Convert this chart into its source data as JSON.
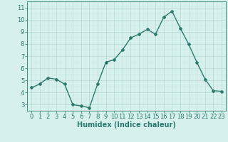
{
  "x": [
    0,
    1,
    2,
    3,
    4,
    5,
    6,
    7,
    8,
    9,
    10,
    11,
    12,
    13,
    14,
    15,
    16,
    17,
    18,
    19,
    20,
    21,
    22,
    23
  ],
  "y": [
    4.4,
    4.7,
    5.2,
    5.1,
    4.7,
    3.0,
    2.9,
    2.75,
    4.7,
    6.5,
    6.7,
    7.5,
    8.5,
    8.8,
    9.2,
    8.8,
    10.2,
    10.7,
    9.3,
    8.0,
    6.5,
    5.1,
    4.15,
    4.1
  ],
  "line_color": "#2d7a6e",
  "marker": "D",
  "marker_size": 2,
  "bg_color": "#d6f0ee",
  "grid_major_color": "#b8d8d4",
  "grid_minor_color": "#c8e8e4",
  "axis_color": "#2d7a6e",
  "xlabel": "Humidex (Indice chaleur)",
  "ylim": [
    2.5,
    11.5
  ],
  "xlim": [
    -0.5,
    23.5
  ],
  "yticks": [
    3,
    4,
    5,
    6,
    7,
    8,
    9,
    10,
    11
  ],
  "xticks": [
    0,
    1,
    2,
    3,
    4,
    5,
    6,
    7,
    8,
    9,
    10,
    11,
    12,
    13,
    14,
    15,
    16,
    17,
    18,
    19,
    20,
    21,
    22,
    23
  ],
  "xlabel_fontsize": 7,
  "tick_fontsize": 6,
  "linewidth": 1.0
}
